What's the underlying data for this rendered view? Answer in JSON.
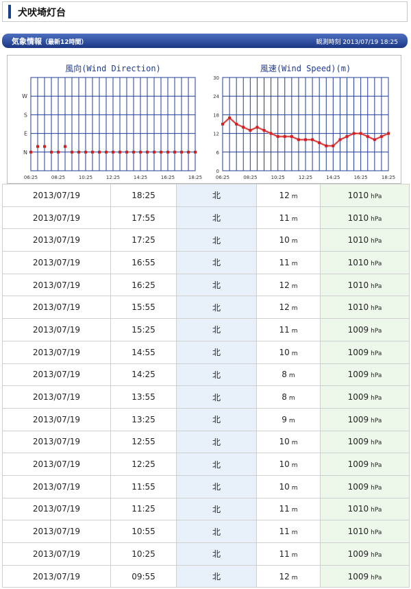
{
  "page": {
    "title": "犬吠埼灯台"
  },
  "section": {
    "title": "気象情報",
    "subtitle": "（最新12時間）",
    "observed_label": "観測時刻",
    "observed_value": "2013/07/19 18:25"
  },
  "colors": {
    "grid": "#1f3c96",
    "series": "#d21f1f",
    "header_from": "#4d6fc0",
    "header_to": "#1a3784"
  },
  "charts": {
    "direction": {
      "title": "風向(Wind Direction)",
      "y_ticks": [
        "W",
        "S",
        "E",
        "N"
      ]
    },
    "speed": {
      "title": "風速(Wind Speed)(m)",
      "y_ticks": [
        "30",
        "24",
        "18",
        "12",
        "6",
        "0"
      ]
    },
    "x_ticks": [
      "06:25",
      "08:25",
      "10:25",
      "12:25",
      "14:25",
      "16:25",
      "18:25"
    ]
  },
  "chart_data": [
    {
      "type": "scatter",
      "title": "風向(Wind Direction)",
      "y_categories": [
        "N",
        "E",
        "S",
        "W"
      ],
      "x": [
        "06:25",
        "06:55",
        "07:25",
        "07:55",
        "08:25",
        "08:55",
        "09:25",
        "09:55",
        "10:25",
        "10:55",
        "11:25",
        "11:55",
        "12:25",
        "12:55",
        "13:25",
        "13:55",
        "14:25",
        "14:55",
        "15:25",
        "15:55",
        "16:25",
        "16:55",
        "17:25",
        "17:55",
        "18:25"
      ],
      "values": [
        0.0,
        0.3,
        0.3,
        0.0,
        0.0,
        0.3,
        0.0,
        0.0,
        0.0,
        0.0,
        0.0,
        0.0,
        0.0,
        0.0,
        0.0,
        0.0,
        0.0,
        0.0,
        0.0,
        0.0,
        0.0,
        0.0,
        0.0,
        0.0,
        0.0
      ],
      "ylim": [
        0,
        3
      ]
    },
    {
      "type": "line",
      "title": "風速(Wind Speed)(m)",
      "x": [
        "06:25",
        "06:55",
        "07:25",
        "07:55",
        "08:25",
        "08:55",
        "09:25",
        "09:55",
        "10:25",
        "10:55",
        "11:25",
        "11:55",
        "12:25",
        "12:55",
        "13:25",
        "13:55",
        "14:25",
        "14:55",
        "15:25",
        "15:55",
        "16:25",
        "16:55",
        "17:25",
        "17:55",
        "18:25"
      ],
      "values": [
        15,
        17,
        15,
        14,
        13,
        14,
        13,
        12,
        11,
        11,
        11,
        10,
        10,
        10,
        9,
        8,
        8,
        10,
        11,
        12,
        12,
        11,
        10,
        11,
        12
      ],
      "ylim": [
        0,
        30
      ],
      "yticks": [
        0,
        6,
        12,
        18,
        24,
        30
      ]
    }
  ],
  "table": {
    "speed_unit": "m",
    "pressure_unit": "hPa",
    "rows": [
      {
        "date": "2013/07/19",
        "time": "18:25",
        "direction": "北",
        "speed": "12",
        "pressure": "1010"
      },
      {
        "date": "2013/07/19",
        "time": "17:55",
        "direction": "北",
        "speed": "11",
        "pressure": "1010"
      },
      {
        "date": "2013/07/19",
        "time": "17:25",
        "direction": "北",
        "speed": "10",
        "pressure": "1010"
      },
      {
        "date": "2013/07/19",
        "time": "16:55",
        "direction": "北",
        "speed": "11",
        "pressure": "1010"
      },
      {
        "date": "2013/07/19",
        "time": "16:25",
        "direction": "北",
        "speed": "12",
        "pressure": "1010"
      },
      {
        "date": "2013/07/19",
        "time": "15:55",
        "direction": "北",
        "speed": "12",
        "pressure": "1010"
      },
      {
        "date": "2013/07/19",
        "time": "15:25",
        "direction": "北",
        "speed": "11",
        "pressure": "1009"
      },
      {
        "date": "2013/07/19",
        "time": "14:55",
        "direction": "北",
        "speed": "10",
        "pressure": "1009"
      },
      {
        "date": "2013/07/19",
        "time": "14:25",
        "direction": "北",
        "speed": "8",
        "pressure": "1009"
      },
      {
        "date": "2013/07/19",
        "time": "13:55",
        "direction": "北",
        "speed": "8",
        "pressure": "1009"
      },
      {
        "date": "2013/07/19",
        "time": "13:25",
        "direction": "北",
        "speed": "9",
        "pressure": "1009"
      },
      {
        "date": "2013/07/19",
        "time": "12:55",
        "direction": "北",
        "speed": "10",
        "pressure": "1009"
      },
      {
        "date": "2013/07/19",
        "time": "12:25",
        "direction": "北",
        "speed": "10",
        "pressure": "1009"
      },
      {
        "date": "2013/07/19",
        "time": "11:55",
        "direction": "北",
        "speed": "10",
        "pressure": "1009"
      },
      {
        "date": "2013/07/19",
        "time": "11:25",
        "direction": "北",
        "speed": "11",
        "pressure": "1010"
      },
      {
        "date": "2013/07/19",
        "time": "10:55",
        "direction": "北",
        "speed": "11",
        "pressure": "1010"
      },
      {
        "date": "2013/07/19",
        "time": "10:25",
        "direction": "北",
        "speed": "11",
        "pressure": "1009"
      },
      {
        "date": "2013/07/19",
        "time": "09:55",
        "direction": "北",
        "speed": "12",
        "pressure": "1009"
      }
    ]
  }
}
